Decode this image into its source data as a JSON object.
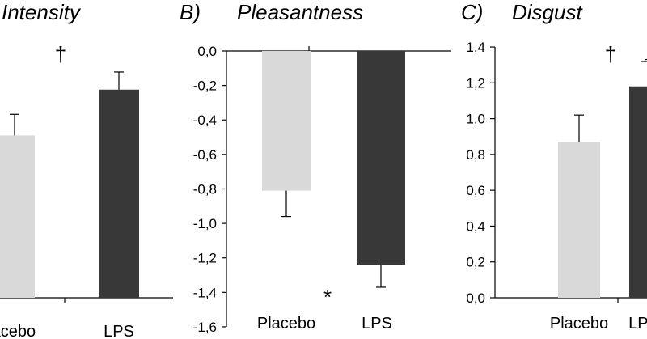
{
  "chart_data": [
    {
      "panel": "",
      "title": "Intensity",
      "type": "bar",
      "categories": [
        "Placebo",
        "LPS"
      ],
      "values": [
        4.6,
        5.9
      ],
      "errors": [
        0.6,
        0.5
      ],
      "colors": [
        "#d9d9d9",
        "#383838"
      ],
      "ylim": [
        0,
        7
      ],
      "yticks": [],
      "significance": "†",
      "xlabel": "",
      "ylabel": ""
    },
    {
      "panel": "B)",
      "title": "Pleasantness",
      "type": "bar",
      "categories": [
        "Placebo",
        "LPS"
      ],
      "values": [
        -0.81,
        -1.24
      ],
      "errors": [
        0.15,
        0.13
      ],
      "colors": [
        "#d9d9d9",
        "#383838"
      ],
      "ylim": [
        -1.6,
        0.0
      ],
      "yticks": [
        "0,0",
        "-0,2",
        "-0,4",
        "-0,6",
        "-0,8",
        "-1,0",
        "-1,2",
        "-1,4",
        "-1,6"
      ],
      "significance": "*",
      "xlabel": "",
      "ylabel": ""
    },
    {
      "panel": "C)",
      "title": "Disgust",
      "type": "bar",
      "categories": [
        "Placebo",
        "LPS"
      ],
      "values": [
        0.87,
        1.18
      ],
      "errors": [
        0.15,
        0.15
      ],
      "colors": [
        "#d9d9d9",
        "#383838"
      ],
      "ylim": [
        0.0,
        1.4
      ],
      "yticks": [
        "1,4",
        "1,2",
        "1,0",
        "0,8",
        "0,6",
        "0,4",
        "0,2",
        "0,0"
      ],
      "significance": "†",
      "xlabel": "",
      "ylabel": ""
    }
  ]
}
